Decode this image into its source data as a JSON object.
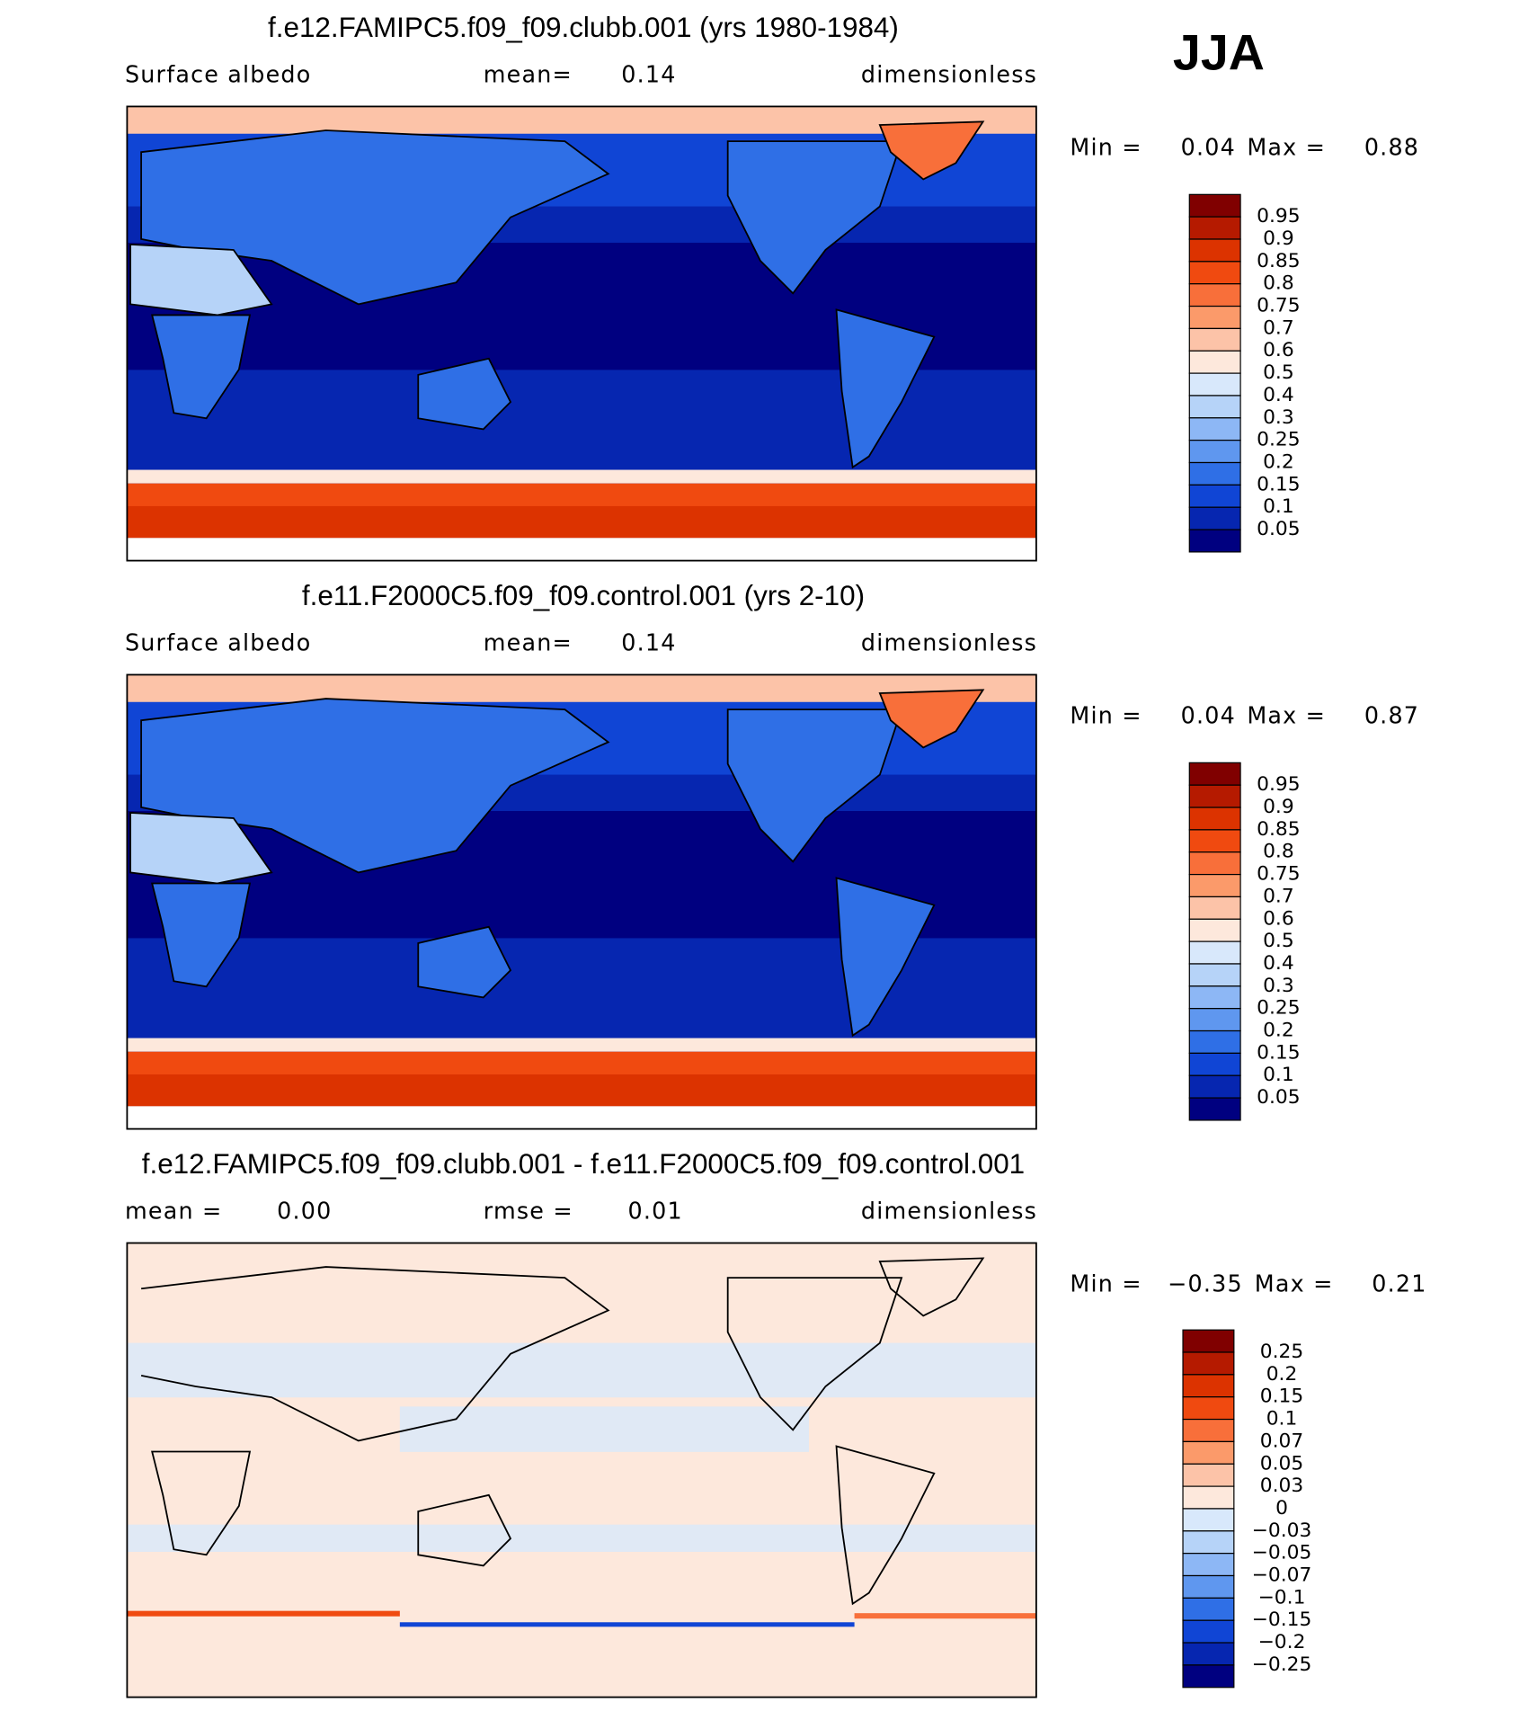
{
  "season": "JJA",
  "panels": [
    {
      "kind": "absolute",
      "title": "f.e12.FAMIPC5.f09_f09.clubb.001 (yrs 1980-1984)",
      "left": "Surface albedo",
      "mid_label": "mean=",
      "mid_value": "0.14",
      "right": "dimensionless",
      "min_label": "Min =",
      "min_value": "0.04",
      "max_label": "Max =",
      "max_value": "0.88",
      "colorbar": {
        "labels": [
          "0.95",
          "0.9",
          "0.85",
          "0.8",
          "0.75",
          "0.7",
          "0.6",
          "0.5",
          "0.4",
          "0.3",
          "0.25",
          "0.2",
          "0.15",
          "0.1",
          "0.05"
        ],
        "colors": [
          "#800000",
          "#b51a00",
          "#dc3300",
          "#f04a10",
          "#f86f3a",
          "#fb9a6a",
          "#fcc3a8",
          "#fde8dc",
          "#d8e8fb",
          "#b6d3f8",
          "#8db7f5",
          "#5f97ef",
          "#2f6fe6",
          "#1045d5",
          "#0626b0",
          "#000080"
        ]
      }
    },
    {
      "kind": "absolute",
      "title": "f.e11.F2000C5.f09_f09.control.001 (yrs 2-10)",
      "left": "Surface albedo",
      "mid_label": "mean=",
      "mid_value": "0.14",
      "right": "dimensionless",
      "min_label": "Min =",
      "min_value": "0.04",
      "max_label": "Max =",
      "max_value": "0.87",
      "colorbar": {
        "labels": [
          "0.95",
          "0.9",
          "0.85",
          "0.8",
          "0.75",
          "0.7",
          "0.6",
          "0.5",
          "0.4",
          "0.3",
          "0.25",
          "0.2",
          "0.15",
          "0.1",
          "0.05"
        ],
        "colors": [
          "#800000",
          "#b51a00",
          "#dc3300",
          "#f04a10",
          "#f86f3a",
          "#fb9a6a",
          "#fcc3a8",
          "#fde8dc",
          "#d8e8fb",
          "#b6d3f8",
          "#8db7f5",
          "#5f97ef",
          "#2f6fe6",
          "#1045d5",
          "#0626b0",
          "#000080"
        ]
      }
    },
    {
      "kind": "difference",
      "title": "f.e12.FAMIPC5.f09_f09.clubb.001 - f.e11.F2000C5.f09_f09.control.001",
      "left": "mean =",
      "left_value": "0.00",
      "mid_label": "rmse =",
      "mid_value": "0.01",
      "right": "dimensionless",
      "min_label": "Min =",
      "min_value": "−0.35",
      "max_label": "Max =",
      "max_value": "0.21",
      "colorbar": {
        "labels": [
          "0.25",
          "0.2",
          "0.15",
          "0.1",
          "0.07",
          "0.05",
          "0.03",
          "0",
          "−0.03",
          "−0.05",
          "−0.07",
          "−0.1",
          "−0.15",
          "−0.2",
          "−0.25"
        ],
        "colors": [
          "#800000",
          "#b51a00",
          "#dc3300",
          "#f04a10",
          "#f86f3a",
          "#fb9a6a",
          "#fcc3a8",
          "#fde8dc",
          "#d8e8fb",
          "#b6d3f8",
          "#8db7f5",
          "#5f97ef",
          "#2f6fe6",
          "#1045d5",
          "#0626b0",
          "#000080"
        ]
      }
    }
  ]
}
